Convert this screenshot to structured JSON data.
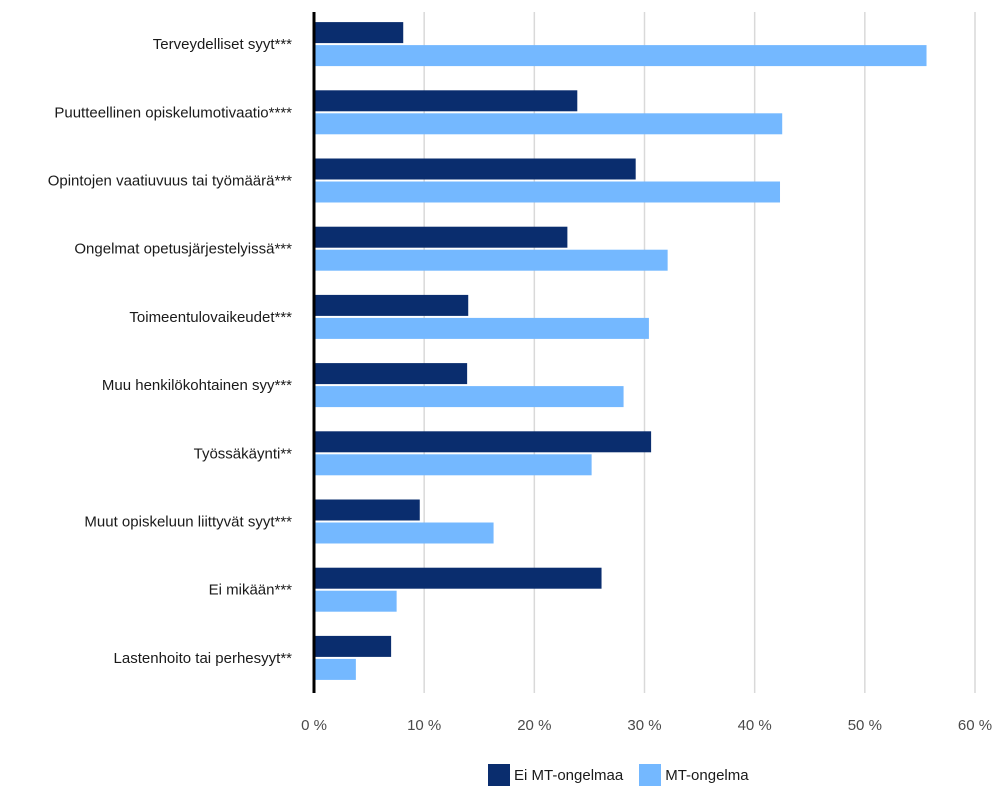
{
  "chart_data": {
    "type": "bar",
    "orientation": "horizontal",
    "categories": [
      "Terveydelliset syyt***",
      "Puutteellinen opiskelumotivaatio****",
      "Opintojen vaatiuvuus tai työmäärä***",
      "Ongelmat opetusjärjestelyissä***",
      "Toimeentulovaikeudet***",
      "Muu henkilökohtainen syy***",
      "Työssäkäynti**",
      "Muut opiskeluun liittyvät syyt***",
      "Ei mikään***",
      "Lastenhoito tai perhesyyt**"
    ],
    "series": [
      {
        "name": "Ei MT-ongelmaa",
        "color": "#0a2d6e",
        "values": [
          8.1,
          23.9,
          29.2,
          23.0,
          14.0,
          13.9,
          30.6,
          9.6,
          26.1,
          7.0
        ]
      },
      {
        "name": "MT-ongelma",
        "color": "#74b8ff",
        "values": [
          55.6,
          42.5,
          42.3,
          32.1,
          30.4,
          28.1,
          25.2,
          16.3,
          7.5,
          3.8
        ]
      }
    ],
    "xlim": [
      0,
      60
    ],
    "xticks": [
      0,
      10,
      20,
      30,
      40,
      50,
      60
    ],
    "xtick_labels": [
      "0 %",
      "10 %",
      "20 %",
      "30 %",
      "40 %",
      "50 %",
      "60 %"
    ],
    "grid": true,
    "legend_position": "bottom"
  }
}
